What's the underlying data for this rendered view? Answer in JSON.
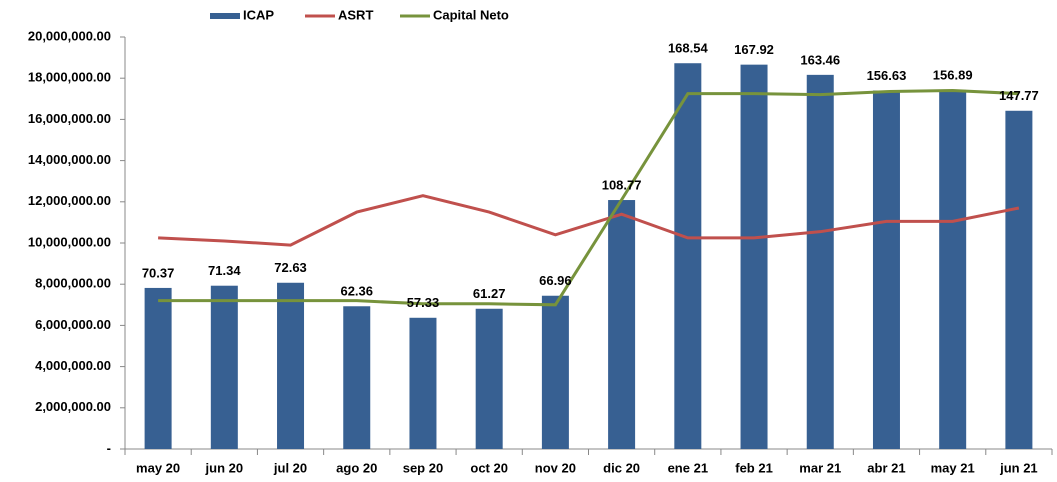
{
  "chart_data": {
    "type": "bar",
    "categories": [
      "may 20",
      "jun 20",
      "jul 20",
      "ago 20",
      "sep 20",
      "oct 20",
      "nov 20",
      "dic 20",
      "ene 21",
      "feb 21",
      "mar 21",
      "abr 21",
      "may 21",
      "jun 21"
    ],
    "series": [
      {
        "name": "ICAP",
        "type": "bar",
        "axis": "y2",
        "color": "#376092",
        "values": [
          70.37,
          71.34,
          72.63,
          62.36,
          57.33,
          61.27,
          66.96,
          108.77,
          168.54,
          167.92,
          163.46,
          156.63,
          156.89,
          147.77
        ]
      },
      {
        "name": "ASRT",
        "type": "line",
        "color": "#c0504d",
        "values": [
          10250000,
          10100000,
          9900000,
          11500000,
          12300000,
          11500000,
          10400000,
          11400000,
          10250000,
          10250000,
          10550000,
          11050000,
          11050000,
          11700000
        ]
      },
      {
        "name": "Capital Neto",
        "type": "line",
        "color": "#77933c",
        "values": [
          7200000,
          7200000,
          7200000,
          7200000,
          7050000,
          7050000,
          7000000,
          12100000,
          17250000,
          17250000,
          17200000,
          17350000,
          17400000,
          17250000
        ]
      }
    ],
    "ylim": [
      0,
      20000000
    ],
    "yticks": [
      {
        "value": 0,
        "label": "-"
      },
      {
        "value": 2000000,
        "label": "2,000,000.00"
      },
      {
        "value": 4000000,
        "label": "4,000,000.00"
      },
      {
        "value": 6000000,
        "label": "6,000,000.00"
      },
      {
        "value": 8000000,
        "label": "8,000,000.00"
      },
      {
        "value": 10000000,
        "label": "10,000,000.00"
      },
      {
        "value": 12000000,
        "label": "12,000,000.00"
      },
      {
        "value": 14000000,
        "label": "14,000,000.00"
      },
      {
        "value": 16000000,
        "label": "16,000,000.00"
      },
      {
        "value": 18000000,
        "label": "18,000,000.00"
      },
      {
        "value": 20000000,
        "label": "20,000,000.00"
      }
    ],
    "y2lim": [
      0,
      180
    ],
    "grid": false,
    "legend": "top"
  }
}
